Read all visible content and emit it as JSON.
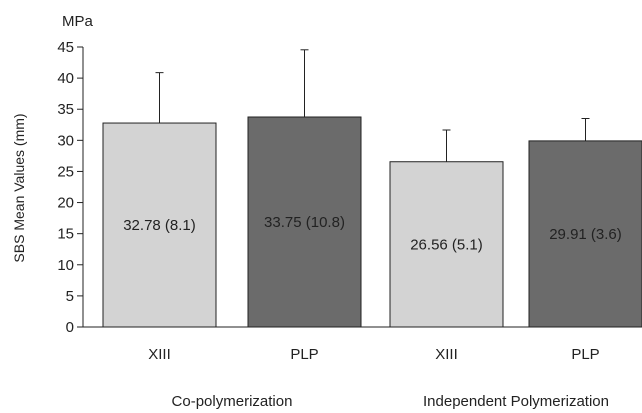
{
  "chart_data": {
    "type": "bar",
    "unit": "MPa",
    "ylabel": "SBS Mean Values (mm)",
    "ylim": [
      0,
      45
    ],
    "yticks": [
      0,
      5,
      10,
      15,
      20,
      25,
      30,
      35,
      40,
      45
    ],
    "grid": false,
    "legend": "none",
    "categories": [
      "XIII",
      "PLP",
      "XIII",
      "PLP"
    ],
    "groups": [
      {
        "label": "Co-polymerization",
        "categories": [
          0,
          1
        ]
      },
      {
        "label": "Independent Polymerization",
        "categories": [
          2,
          3
        ]
      }
    ],
    "values": [
      32.78,
      33.75,
      26.56,
      29.91
    ],
    "sd": [
      8.1,
      10.8,
      5.1,
      3.6
    ],
    "bar_labels": [
      "32.78 (8.1)",
      "33.75 (10.8)",
      "26.56 (5.1)",
      "29.91 (3.6)"
    ],
    "colors": [
      "#d3d3d3",
      "#6b6b6b",
      "#d3d3d3",
      "#6b6b6b"
    ]
  }
}
